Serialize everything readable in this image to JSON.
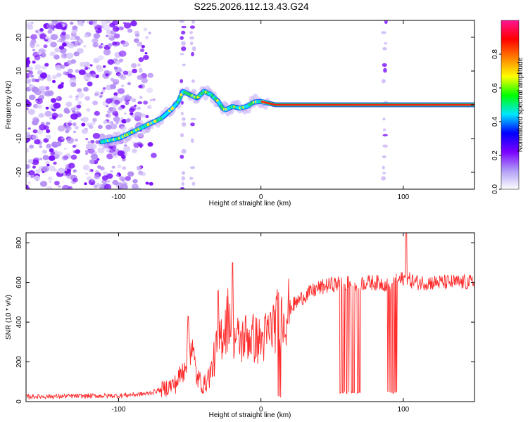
{
  "title": "S225.2026.112.13.43.G24",
  "chart_data": [
    {
      "type": "heatmap",
      "name": "spectrogram",
      "xlabel": "Height of straight line (km)",
      "ylabel": "Frequency (Hz)",
      "xlim": [
        -165,
        150
      ],
      "ylim": [
        -25,
        25
      ],
      "xticks": [
        -100,
        0,
        100
      ],
      "yticks": [
        -20,
        -10,
        0,
        10,
        20
      ],
      "xtick_labels": [
        "-100",
        "0",
        "100"
      ],
      "ytick_labels": [
        "-20",
        "-10",
        "0",
        "10",
        "20"
      ],
      "colorbar": {
        "label": "Normalized spectral amplitude",
        "range": [
          0,
          1
        ],
        "ticks": [
          0,
          0.2,
          0.4,
          0.6,
          0.8
        ],
        "tick_labels": [
          "0.0",
          "0.2",
          "0.4",
          "0.6",
          "0.8"
        ],
        "colormap": [
          "#ffffff",
          "#b09cf5",
          "#7b00ff",
          "#0000ff",
          "#00e6ff",
          "#00ff00",
          "#ffff00",
          "#ff8000",
          "#ff0000",
          "#ff1493"
        ]
      },
      "ridge": {
        "x": [
          -112,
          -100,
          -90,
          -80,
          -70,
          -62,
          -58,
          -55,
          -50,
          -45,
          -40,
          -35,
          -30,
          -27,
          -25,
          -20,
          -15,
          -10,
          -5,
          0,
          10,
          30,
          50,
          70,
          85,
          90,
          110,
          150
        ],
        "y": [
          -11,
          -10,
          -8,
          -6,
          -4,
          -1,
          1,
          4,
          3,
          2,
          4,
          3,
          1,
          -1,
          -1.5,
          -0.5,
          -1,
          -0.5,
          0.8,
          1,
          0,
          0,
          0,
          0,
          0,
          0,
          0,
          0
        ]
      },
      "stripes_x": [
        -55,
        -48,
        -85,
        87
      ],
      "noise_region_x": [
        -165,
        -80
      ]
    },
    {
      "type": "line",
      "name": "snr",
      "xlabel": "Height of straight line (km)",
      "ylabel": "SNR (10 * v/v)",
      "xlim": [
        -165,
        150
      ],
      "ylim": [
        0,
        850
      ],
      "xticks": [
        -100,
        0,
        100
      ],
      "yticks": [
        0,
        200,
        400,
        600,
        800
      ],
      "xtick_labels": [
        "-100",
        "0",
        "100"
      ],
      "ytick_labels": [
        "0",
        "200",
        "400",
        "600",
        "800"
      ],
      "color": "#ff2a2a",
      "trend": {
        "x": [
          -165,
          -100,
          -80,
          -70,
          -60,
          -55,
          -52,
          -50,
          -48,
          -45,
          -40,
          -35,
          -30,
          -25,
          -22,
          -20,
          -15,
          -10,
          -5,
          0,
          5,
          10,
          15,
          20,
          30,
          40,
          50,
          60,
          80,
          90,
          100,
          110,
          150
        ],
        "y": [
          25,
          30,
          40,
          60,
          90,
          150,
          250,
          320,
          250,
          120,
          80,
          150,
          300,
          380,
          450,
          350,
          300,
          330,
          320,
          300,
          340,
          400,
          430,
          470,
          530,
          570,
          590,
          595,
          600,
          590,
          620,
          600,
          600
        ]
      },
      "spikes": [
        {
          "x": -51,
          "y": 430
        },
        {
          "x": -30,
          "y": 560
        },
        {
          "x": -20,
          "y": 700
        },
        {
          "x": 98,
          "y": 600
        },
        {
          "x": 102,
          "y": 850
        }
      ],
      "dropouts": [
        {
          "x0": 55,
          "x1": 70,
          "y": 40
        },
        {
          "x0": 89,
          "x1": 96,
          "y": 40
        },
        {
          "x0": 12,
          "x1": 14,
          "y": 20
        }
      ]
    }
  ]
}
